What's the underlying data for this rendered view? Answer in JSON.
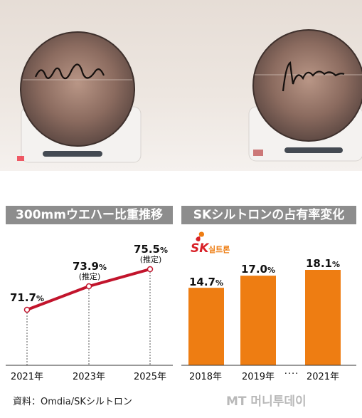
{
  "left_chart_title": "300mmウエハー比重推移",
  "right_chart_title": "SKシルトロンの占有率変化",
  "sk_logo": {
    "main": "SK",
    "sub": "실트론"
  },
  "left_note": "(推定)",
  "right_ellipsis": "····",
  "source": "資料：Omdia/SKシルトロン",
  "brand_text": "MT 머니투데이",
  "colors": {
    "line": "#c2142c",
    "bar": "#ee7d12",
    "panel_title_bg": "#8d8d8d"
  },
  "chart_data": [
    {
      "type": "line",
      "title": "300mmウエハー比重推移",
      "x": [
        "2021年",
        "2023年",
        "2025年"
      ],
      "series": [
        {
          "values": [
            71.7,
            73.9,
            75.5
          ]
        }
      ],
      "value_labels": [
        "71.7",
        "73.9",
        "75.5"
      ],
      "unit": "%",
      "annotations": [
        "",
        "(推定)",
        "(推定)"
      ]
    },
    {
      "type": "bar",
      "title": "SKシルトロンの占有率変化",
      "categories": [
        "2018年",
        "2019年",
        "2021年"
      ],
      "values": [
        14.7,
        17.0,
        18.1
      ],
      "value_labels": [
        "14.7",
        "17.0",
        "18.1"
      ],
      "unit": "%"
    }
  ]
}
